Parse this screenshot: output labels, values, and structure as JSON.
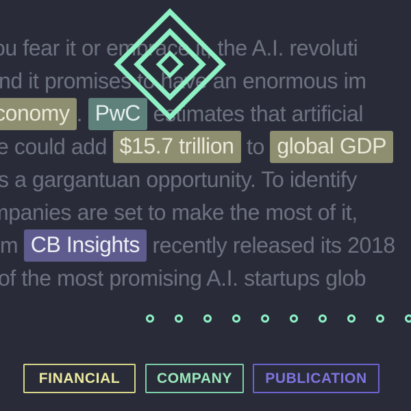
{
  "theme": {
    "background": "#292c38",
    "body_text": "#6d7280",
    "accent_mint": "#8ef0c5",
    "highlight_financial_bg": "#8e8e71",
    "highlight_financial_text": "#eae8d7",
    "highlight_company_bg": "#5e817c",
    "highlight_company_text": "#e4efeb",
    "highlight_publication_bg": "#5e5c8e",
    "highlight_publication_text": "#eef0f6",
    "financial_color": "#ece9a0",
    "company_color": "#9ae8bc",
    "publication_color": "#7e74e0"
  },
  "logo": {
    "icon": "nested-diamonds-icon",
    "color": "#8ef0c5"
  },
  "paragraph": {
    "lines": [
      {
        "segments": [
          {
            "text": "ou fear it or embrace it, the A.I. revoluti"
          }
        ]
      },
      {
        "segments": [
          {
            "text": "nd it promises to have an enormous im"
          }
        ]
      },
      {
        "segments": [
          {
            "text": "conomy",
            "entity": "FINANCIAL"
          },
          {
            "text": ". "
          },
          {
            "text": "PwC",
            "entity": "COMPANY"
          },
          {
            "text": " estimates that artificial"
          }
        ]
      },
      {
        "segments": [
          {
            "text": "e could add "
          },
          {
            "text": "$15.7 trillion",
            "entity": "FINANCIAL"
          },
          {
            "text": " to "
          },
          {
            "text": "global GDP",
            "entity": "FINANCIAL"
          }
        ]
      },
      {
        "segments": [
          {
            "text": "s a gargantuan opportunity. To identify"
          }
        ]
      },
      {
        "segments": [
          {
            "text": "mpanies are set to make the most of it,"
          }
        ]
      },
      {
        "segments": [
          {
            "text": "m "
          },
          {
            "text": "CB Insights",
            "entity": "PUBLICATION"
          },
          {
            "text": " recently released its 2018"
          }
        ]
      },
      {
        "segments": [
          {
            "text": "of the most promising A.I. startups glob"
          }
        ]
      }
    ]
  },
  "pagination": {
    "dot_count": 10,
    "color": "#8ef0c5"
  },
  "labels": {
    "financial": "FINANCIAL",
    "company": "COMPANY",
    "publication": "PUBLICATION"
  }
}
